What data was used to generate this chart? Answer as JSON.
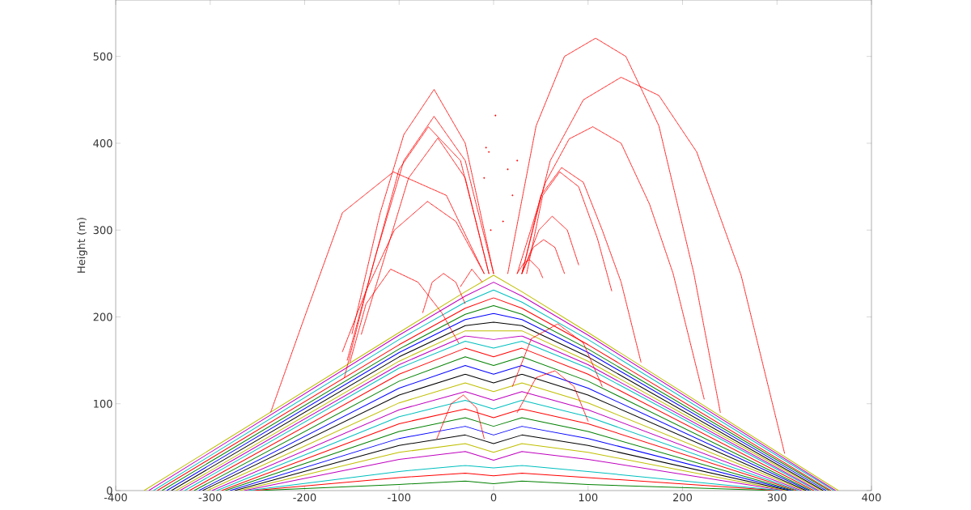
{
  "chart_data": {
    "type": "line",
    "ylabel": "Height (m)",
    "xlim": [
      -400,
      400
    ],
    "ylim": [
      0,
      565
    ],
    "xticks": [
      -400,
      -300,
      -200,
      -100,
      0,
      100,
      200,
      300,
      400
    ],
    "yticks": [
      0,
      100,
      200,
      300,
      400,
      500
    ],
    "marker": "none",
    "line_style": "solid",
    "series": [
      {
        "color": "#008000",
        "x": [
          -250,
          -100,
          -30,
          0,
          30,
          100,
          300
        ],
        "values": [
          0,
          7,
          11,
          8,
          11,
          7,
          0
        ]
      },
      {
        "color": "#ff0000",
        "x": [
          -255,
          -100,
          -30,
          0,
          30,
          100,
          303
        ],
        "values": [
          0,
          15,
          20,
          17,
          20,
          15,
          0
        ]
      },
      {
        "color": "#00bfbf",
        "x": [
          -260,
          -100,
          -30,
          0,
          30,
          100,
          305
        ],
        "values": [
          0,
          22,
          29,
          26,
          29,
          22,
          0
        ]
      },
      {
        "color": "#bf00bf",
        "x": [
          -264,
          -100,
          -30,
          0,
          30,
          100,
          308
        ],
        "values": [
          0,
          36,
          45,
          35,
          45,
          36,
          0
        ]
      },
      {
        "color": "#bfbf00",
        "x": [
          -269,
          -100,
          -30,
          0,
          30,
          100,
          310
        ],
        "values": [
          0,
          44,
          54,
          44,
          54,
          44,
          0
        ]
      },
      {
        "color": "#000000",
        "x": [
          -274,
          -100,
          -30,
          0,
          30,
          100,
          313
        ],
        "values": [
          0,
          52,
          64,
          54,
          64,
          52,
          0
        ]
      },
      {
        "color": "#0000ff",
        "x": [
          -279,
          -100,
          -30,
          0,
          30,
          100,
          316
        ],
        "values": [
          0,
          60,
          74,
          64,
          74,
          60,
          0
        ]
      },
      {
        "color": "#008000",
        "x": [
          -284,
          -100,
          -30,
          0,
          30,
          100,
          318
        ],
        "values": [
          0,
          68,
          84,
          74,
          84,
          68,
          0
        ]
      },
      {
        "color": "#ff0000",
        "x": [
          -288,
          -100,
          -30,
          0,
          30,
          100,
          321
        ],
        "values": [
          0,
          77,
          94,
          84,
          94,
          77,
          0
        ]
      },
      {
        "color": "#00bfbf",
        "x": [
          -293,
          -100,
          -30,
          0,
          30,
          100,
          323
        ],
        "values": [
          0,
          85,
          104,
          94,
          104,
          85,
          0
        ]
      },
      {
        "color": "#bf00bf",
        "x": [
          -298,
          -100,
          -30,
          0,
          30,
          100,
          326
        ],
        "values": [
          0,
          93,
          114,
          104,
          114,
          93,
          0
        ]
      },
      {
        "color": "#bfbf00",
        "x": [
          -303,
          -100,
          -30,
          0,
          30,
          100,
          329
        ],
        "values": [
          0,
          101,
          124,
          114,
          124,
          101,
          0
        ]
      },
      {
        "color": "#000000",
        "x": [
          -308,
          -100,
          -30,
          0,
          30,
          100,
          331
        ],
        "values": [
          0,
          110,
          134,
          124,
          134,
          110,
          0
        ]
      },
      {
        "color": "#0000ff",
        "x": [
          -312,
          -100,
          -30,
          0,
          30,
          100,
          334
        ],
        "values": [
          0,
          118,
          144,
          134,
          144,
          118,
          0
        ]
      },
      {
        "color": "#008000",
        "x": [
          -317,
          -100,
          -30,
          0,
          30,
          100,
          336
        ],
        "values": [
          0,
          126,
          154,
          144,
          154,
          126,
          0
        ]
      },
      {
        "color": "#ff0000",
        "x": [
          -322,
          -100,
          -30,
          0,
          30,
          100,
          339
        ],
        "values": [
          0,
          134,
          164,
          154,
          164,
          134,
          0
        ]
      },
      {
        "color": "#00bfbf",
        "x": [
          -327,
          -100,
          -30,
          0,
          30,
          100,
          342
        ],
        "values": [
          0,
          141,
          172,
          164,
          172,
          141,
          0
        ]
      },
      {
        "color": "#bf00bf",
        "x": [
          -332,
          -100,
          -30,
          0,
          30,
          100,
          344
        ],
        "values": [
          0,
          145,
          178,
          174,
          178,
          145,
          0
        ]
      },
      {
        "color": "#bfbf00",
        "x": [
          -336,
          -100,
          -30,
          0,
          30,
          100,
          347
        ],
        "values": [
          0,
          149,
          184,
          184,
          184,
          149,
          0
        ]
      },
      {
        "color": "#000000",
        "x": [
          -341,
          -100,
          -30,
          0,
          30,
          100,
          349
        ],
        "values": [
          0,
          154,
          190,
          194,
          190,
          154,
          0
        ]
      },
      {
        "color": "#0000ff",
        "x": [
          -346,
          -100,
          -30,
          0,
          30,
          100,
          352
        ],
        "values": [
          0,
          159,
          197,
          204,
          197,
          159,
          0
        ]
      },
      {
        "color": "#008000",
        "x": [
          -351,
          -100,
          -30,
          0,
          30,
          100,
          355
        ],
        "values": [
          0,
          163,
          203,
          213,
          203,
          163,
          0
        ]
      },
      {
        "color": "#ff0000",
        "x": [
          -356,
          -100,
          -30,
          0,
          30,
          100,
          357
        ],
        "values": [
          0,
          168,
          210,
          222,
          210,
          168,
          0
        ]
      },
      {
        "color": "#00bfbf",
        "x": [
          -360,
          -100,
          -30,
          0,
          30,
          100,
          360
        ],
        "values": [
          0,
          174,
          217,
          231,
          217,
          174,
          0
        ]
      },
      {
        "color": "#bf00bf",
        "x": [
          -365,
          -100,
          -30,
          0,
          30,
          100,
          362
        ],
        "values": [
          0,
          179,
          224,
          240,
          224,
          179,
          0
        ]
      },
      {
        "color": "#bfbf00",
        "x": [
          -370,
          -100,
          -30,
          0,
          30,
          100,
          365
        ],
        "values": [
          0,
          182,
          229,
          248,
          229,
          182,
          0
        ]
      },
      {
        "color": "#ff0000",
        "line_style": "dotted",
        "x": [
          15,
          45,
          75,
          108,
          140,
          175,
          212,
          240
        ],
        "values": [
          250,
          420,
          500,
          521,
          500,
          420,
          250,
          90
        ]
      },
      {
        "color": "#ff0000",
        "line_style": "dotted",
        "x": [
          30,
          60,
          95,
          135,
          175,
          215,
          262,
          308
        ],
        "values": [
          250,
          380,
          450,
          476,
          455,
          390,
          248,
          43
        ]
      },
      {
        "color": "#ff0000",
        "line_style": "dotted",
        "x": [
          25,
          55,
          80,
          105,
          135,
          165,
          190,
          223
        ],
        "values": [
          250,
          355,
          405,
          419,
          400,
          330,
          250,
          105
        ]
      },
      {
        "color": "#ff0000",
        "line_style": "dotted",
        "x": [
          30,
          50,
          72,
          95,
          115,
          135,
          156
        ],
        "values": [
          250,
          340,
          372,
          355,
          300,
          240,
          148
        ]
      },
      {
        "color": "#ff0000",
        "line_style": "dotted",
        "x": [
          35,
          52,
          70,
          90,
          110,
          125
        ],
        "values": [
          250,
          340,
          367,
          350,
          290,
          230
        ]
      },
      {
        "color": "#ff0000",
        "line_style": "dotted",
        "x": [
          30,
          48,
          62,
          78,
          90
        ],
        "values": [
          250,
          300,
          316,
          300,
          260
        ]
      },
      {
        "color": "#ff0000",
        "line_style": "dotted",
        "x": [
          30,
          42,
          53,
          65,
          75
        ],
        "values": [
          250,
          280,
          289,
          280,
          250
        ]
      },
      {
        "color": "#ff0000",
        "line_style": "dotted",
        "x": [
          25,
          32,
          38,
          48,
          52
        ],
        "values": [
          250,
          262,
          266,
          255,
          245
        ]
      },
      {
        "color": "#ff0000",
        "line_style": "dotted",
        "x": [
          0,
          -30,
          -63,
          -95,
          -120,
          -150
        ],
        "values": [
          250,
          400,
          462,
          410,
          320,
          180
        ]
      },
      {
        "color": "#ff0000",
        "line_style": "dotted",
        "x": [
          0,
          -30,
          -63,
          -95,
          -125,
          -155
        ],
        "values": [
          250,
          380,
          431,
          380,
          270,
          150
        ]
      },
      {
        "color": "#ff0000",
        "line_style": "dotted",
        "x": [
          -5,
          -35,
          -69,
          -100,
          -130,
          -158
        ],
        "values": [
          250,
          380,
          419,
          370,
          250,
          130
        ]
      },
      {
        "color": "#ff0000",
        "line_style": "dotted",
        "x": [
          -5,
          -30,
          -59,
          -90,
          -115,
          -140
        ],
        "values": [
          250,
          360,
          406,
          360,
          270,
          180
        ]
      },
      {
        "color": "#ff0000",
        "line_style": "dotted",
        "x": [
          -10,
          -50,
          -106,
          -160,
          -200,
          -236
        ],
        "values": [
          250,
          340,
          367,
          320,
          200,
          90
        ]
      },
      {
        "color": "#ff0000",
        "line_style": "dotted",
        "x": [
          -10,
          -40,
          -70,
          -105,
          -135,
          -160
        ],
        "values": [
          250,
          310,
          333,
          300,
          230,
          160
        ]
      },
      {
        "color": "#ff0000",
        "line_style": "dotted",
        "x": [
          -152,
          -135,
          -109,
          -80,
          -55,
          -37
        ],
        "values": [
          148,
          215,
          255,
          240,
          205,
          170
        ]
      },
      {
        "color": "#ff0000",
        "line_style": "dotted",
        "x": [
          -75,
          -65,
          -53,
          -40,
          -30
        ],
        "values": [
          205,
          240,
          250,
          240,
          215
        ]
      },
      {
        "color": "#ff0000",
        "line_style": "dotted",
        "x": [
          -35,
          -23,
          -12
        ],
        "values": [
          235,
          255,
          240
        ]
      },
      {
        "color": "#ff0000",
        "line_style": "dotted",
        "x": [
          20,
          40,
          68,
          95,
          115
        ],
        "values": [
          120,
          175,
          192,
          170,
          120
        ]
      },
      {
        "color": "#ff0000",
        "line_style": "dotted",
        "x": [
          25,
          45,
          65,
          85,
          100
        ],
        "values": [
          90,
          130,
          138,
          120,
          80
        ]
      },
      {
        "color": "#ff0000",
        "line_style": "dotted",
        "x": [
          -60,
          -45,
          -32,
          -18,
          -10
        ],
        "values": [
          60,
          100,
          110,
          95,
          60
        ]
      },
      {
        "type": "scatter",
        "marker": "circle",
        "color": "#ff0000",
        "x": [
          2,
          -8,
          -5,
          -10,
          15,
          25,
          20,
          -3,
          10
        ],
        "values": [
          432,
          395,
          390,
          360,
          370,
          380,
          340,
          300,
          310
        ]
      }
    ]
  }
}
